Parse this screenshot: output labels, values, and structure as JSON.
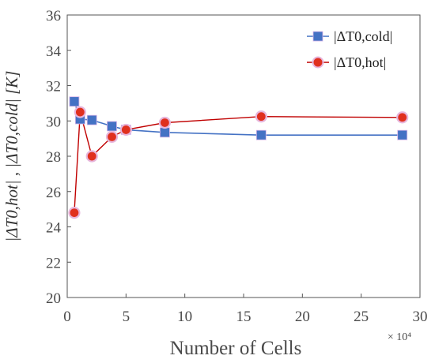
{
  "chart_data": {
    "type": "line",
    "xlabel": "Number of Cells",
    "x_multiplier": "× 10⁴",
    "ylabel": "|ΔT0,hot| , |ΔT0,cold|  [K]",
    "xlim": [
      0,
      30
    ],
    "ylim": [
      20,
      36
    ],
    "xticks": [
      "0",
      "5",
      "10",
      "15",
      "20",
      "25",
      "30"
    ],
    "yticks": [
      "20",
      "22",
      "24",
      "26",
      "28",
      "30",
      "32",
      "34",
      "36"
    ],
    "grid": false,
    "legend_position": "top-right",
    "series": [
      {
        "name": "|ΔT0,cold|",
        "marker": "square",
        "color": "#4472c4",
        "x": [
          0.6,
          1.1,
          2.1,
          3.8,
          5.0,
          8.3,
          16.5,
          28.5
        ],
        "y": [
          31.1,
          30.1,
          30.05,
          29.7,
          29.5,
          29.35,
          29.2,
          29.2
        ]
      },
      {
        "name": "|ΔT0,hot|",
        "marker": "circle",
        "color": "#c00000",
        "x": [
          0.6,
          1.1,
          2.1,
          3.8,
          5.0,
          8.3,
          16.5,
          28.5
        ],
        "y": [
          24.8,
          30.5,
          28.0,
          29.1,
          29.5,
          29.9,
          30.25,
          30.2
        ]
      }
    ]
  }
}
